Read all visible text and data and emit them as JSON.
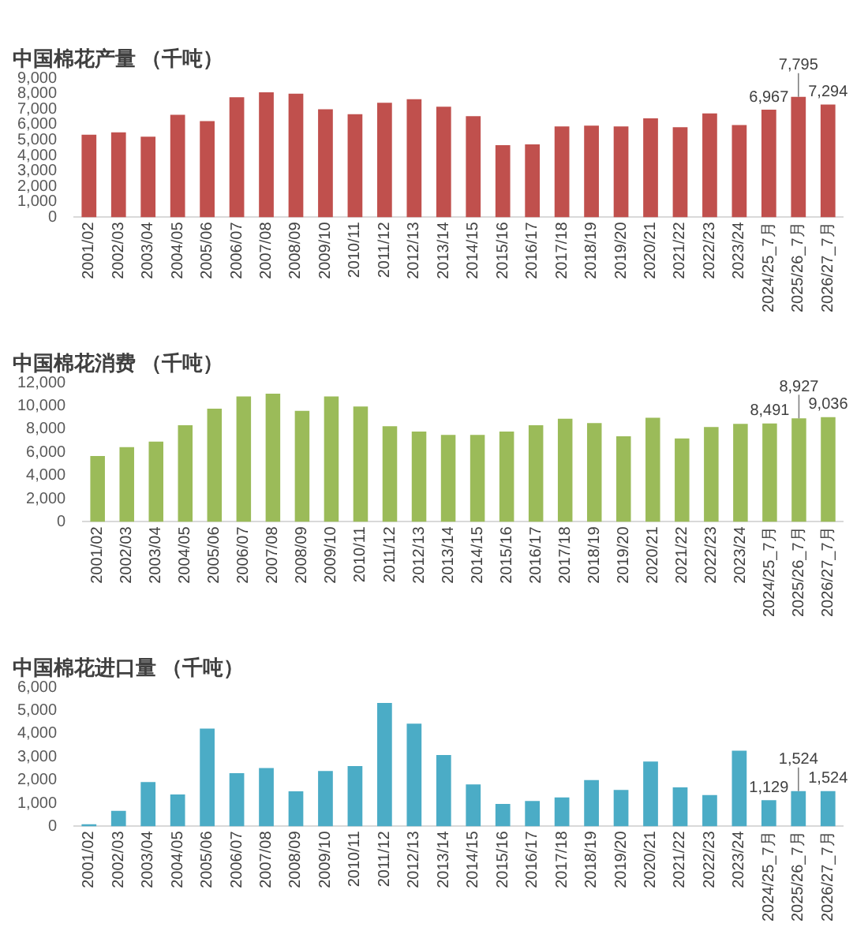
{
  "chart_data": [
    {
      "type": "bar",
      "title": "中国棉花产量 （千吨）",
      "categories": [
        "2001/02",
        "2002/03",
        "2003/04",
        "2004/05",
        "2005/06",
        "2006/07",
        "2007/08",
        "2008/09",
        "2009/10",
        "2010/11",
        "2011/12",
        "2012/13",
        "2013/14",
        "2014/15",
        "2015/16",
        "2016/17",
        "2017/18",
        "2018/19",
        "2019/20",
        "2020/21",
        "2021/22",
        "2022/23",
        "2023/24",
        "2024/25_7月",
        "2025/26_7月",
        "2026/27_7月"
      ],
      "values": [
        5350,
        5500,
        5220,
        6640,
        6230,
        7770,
        8090,
        8000,
        6990,
        6670,
        7420,
        7650,
        7160,
        6550,
        4670,
        4720,
        5880,
        5940,
        5880,
        6410,
        5830,
        6720,
        5970,
        6967,
        7795,
        7294
      ],
      "value_labels": [
        null,
        null,
        null,
        null,
        null,
        null,
        null,
        null,
        null,
        null,
        null,
        null,
        null,
        null,
        null,
        null,
        null,
        null,
        null,
        null,
        null,
        null,
        null,
        "6,967",
        "7,795",
        "7,294"
      ],
      "color": "#c0504d",
      "ylim": [
        0,
        9000
      ],
      "yticks": [
        {
          "value": 0,
          "label": "0"
        },
        {
          "value": 1000,
          "label": "1,000"
        },
        {
          "value": 2000,
          "label": "2,000"
        },
        {
          "value": 3000,
          "label": "3,000"
        },
        {
          "value": 4000,
          "label": "4,000"
        },
        {
          "value": 5000,
          "label": "5,000"
        },
        {
          "value": 6000,
          "label": "6,000"
        },
        {
          "value": 7000,
          "label": "7,000"
        },
        {
          "value": 8000,
          "label": "8,000"
        },
        {
          "value": 9000,
          "label": "9,000"
        }
      ],
      "grid": false,
      "legend": false
    },
    {
      "type": "bar",
      "title": "中国棉花消费 （千吨）",
      "categories": [
        "2001/02",
        "2002/03",
        "2003/04",
        "2004/05",
        "2005/06",
        "2006/07",
        "2007/08",
        "2008/09",
        "2009/10",
        "2010/11",
        "2011/12",
        "2012/13",
        "2013/14",
        "2014/15",
        "2015/16",
        "2016/17",
        "2017/18",
        "2018/19",
        "2019/20",
        "2020/21",
        "2021/22",
        "2022/23",
        "2023/24",
        "2024/25_7月",
        "2025/26_7月",
        "2026/27_7月"
      ],
      "values": [
        5680,
        6440,
        6930,
        8330,
        9770,
        10830,
        11060,
        9580,
        10830,
        9960,
        8260,
        7800,
        7500,
        7500,
        7800,
        8330,
        8900,
        8520,
        7390,
        8980,
        7200,
        8180,
        8450,
        8491,
        8927,
        9036
      ],
      "value_labels": [
        null,
        null,
        null,
        null,
        null,
        null,
        null,
        null,
        null,
        null,
        null,
        null,
        null,
        null,
        null,
        null,
        null,
        null,
        null,
        null,
        null,
        null,
        null,
        "8,491",
        "8,927",
        "9,036"
      ],
      "color": "#9bbb59",
      "ylim": [
        0,
        12000
      ],
      "yticks": [
        {
          "value": 0,
          "label": "0"
        },
        {
          "value": 2000,
          "label": "2,000"
        },
        {
          "value": 4000,
          "label": "4,000"
        },
        {
          "value": 6000,
          "label": "6,000"
        },
        {
          "value": 8000,
          "label": "8,000"
        },
        {
          "value": 10000,
          "label": "10,000"
        },
        {
          "value": 12000,
          "label": "12,000"
        }
      ],
      "grid": false,
      "legend": false
    },
    {
      "type": "bar",
      "title": "中国棉花进口量 （千吨）",
      "categories": [
        "2001/02",
        "2002/03",
        "2003/04",
        "2004/05",
        "2005/06",
        "2006/07",
        "2007/08",
        "2008/09",
        "2009/10",
        "2010/11",
        "2011/12",
        "2012/13",
        "2013/14",
        "2014/15",
        "2015/16",
        "2016/17",
        "2017/18",
        "2018/19",
        "2019/20",
        "2020/21",
        "2021/22",
        "2022/23",
        "2023/24",
        "2024/25_7月",
        "2025/26_7月",
        "2026/27_7月"
      ],
      "values": [
        90,
        670,
        1910,
        1380,
        4220,
        2300,
        2520,
        1510,
        2390,
        2600,
        5330,
        4430,
        3080,
        1810,
        970,
        1100,
        1250,
        2000,
        1570,
        2800,
        1680,
        1350,
        3270,
        1129,
        1524,
        1524
      ],
      "value_labels": [
        null,
        null,
        null,
        null,
        null,
        null,
        null,
        null,
        null,
        null,
        null,
        null,
        null,
        null,
        null,
        null,
        null,
        null,
        null,
        null,
        null,
        null,
        null,
        "1,129",
        "1,524",
        "1,524"
      ],
      "color": "#4bacc6",
      "ylim": [
        0,
        6000
      ],
      "yticks": [
        {
          "value": 0,
          "label": "0"
        },
        {
          "value": 1000,
          "label": "1,000"
        },
        {
          "value": 2000,
          "label": "2,000"
        },
        {
          "value": 3000,
          "label": "3,000"
        },
        {
          "value": 4000,
          "label": "4,000"
        },
        {
          "value": 5000,
          "label": "5,000"
        },
        {
          "value": 6000,
          "label": "6,000"
        }
      ],
      "grid": false,
      "legend": false
    }
  ]
}
